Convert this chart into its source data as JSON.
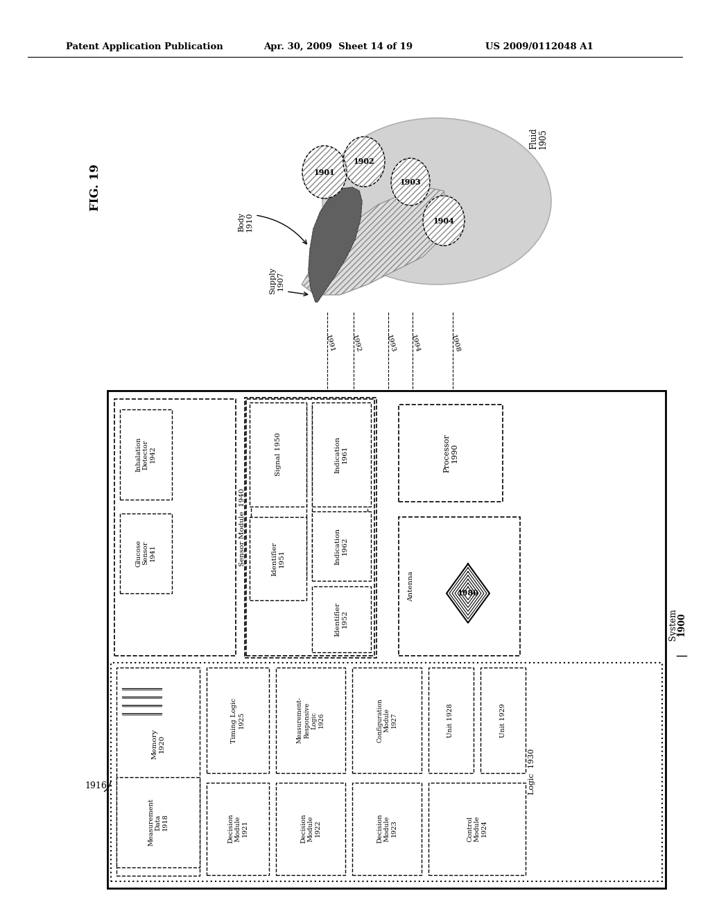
{
  "header_left": "Patent Application Publication",
  "header_mid": "Apr. 30, 2009  Sheet 14 of 19",
  "header_right": "US 2009/0112048 A1",
  "fig_label": "FIG. 19",
  "background_color": "#ffffff"
}
